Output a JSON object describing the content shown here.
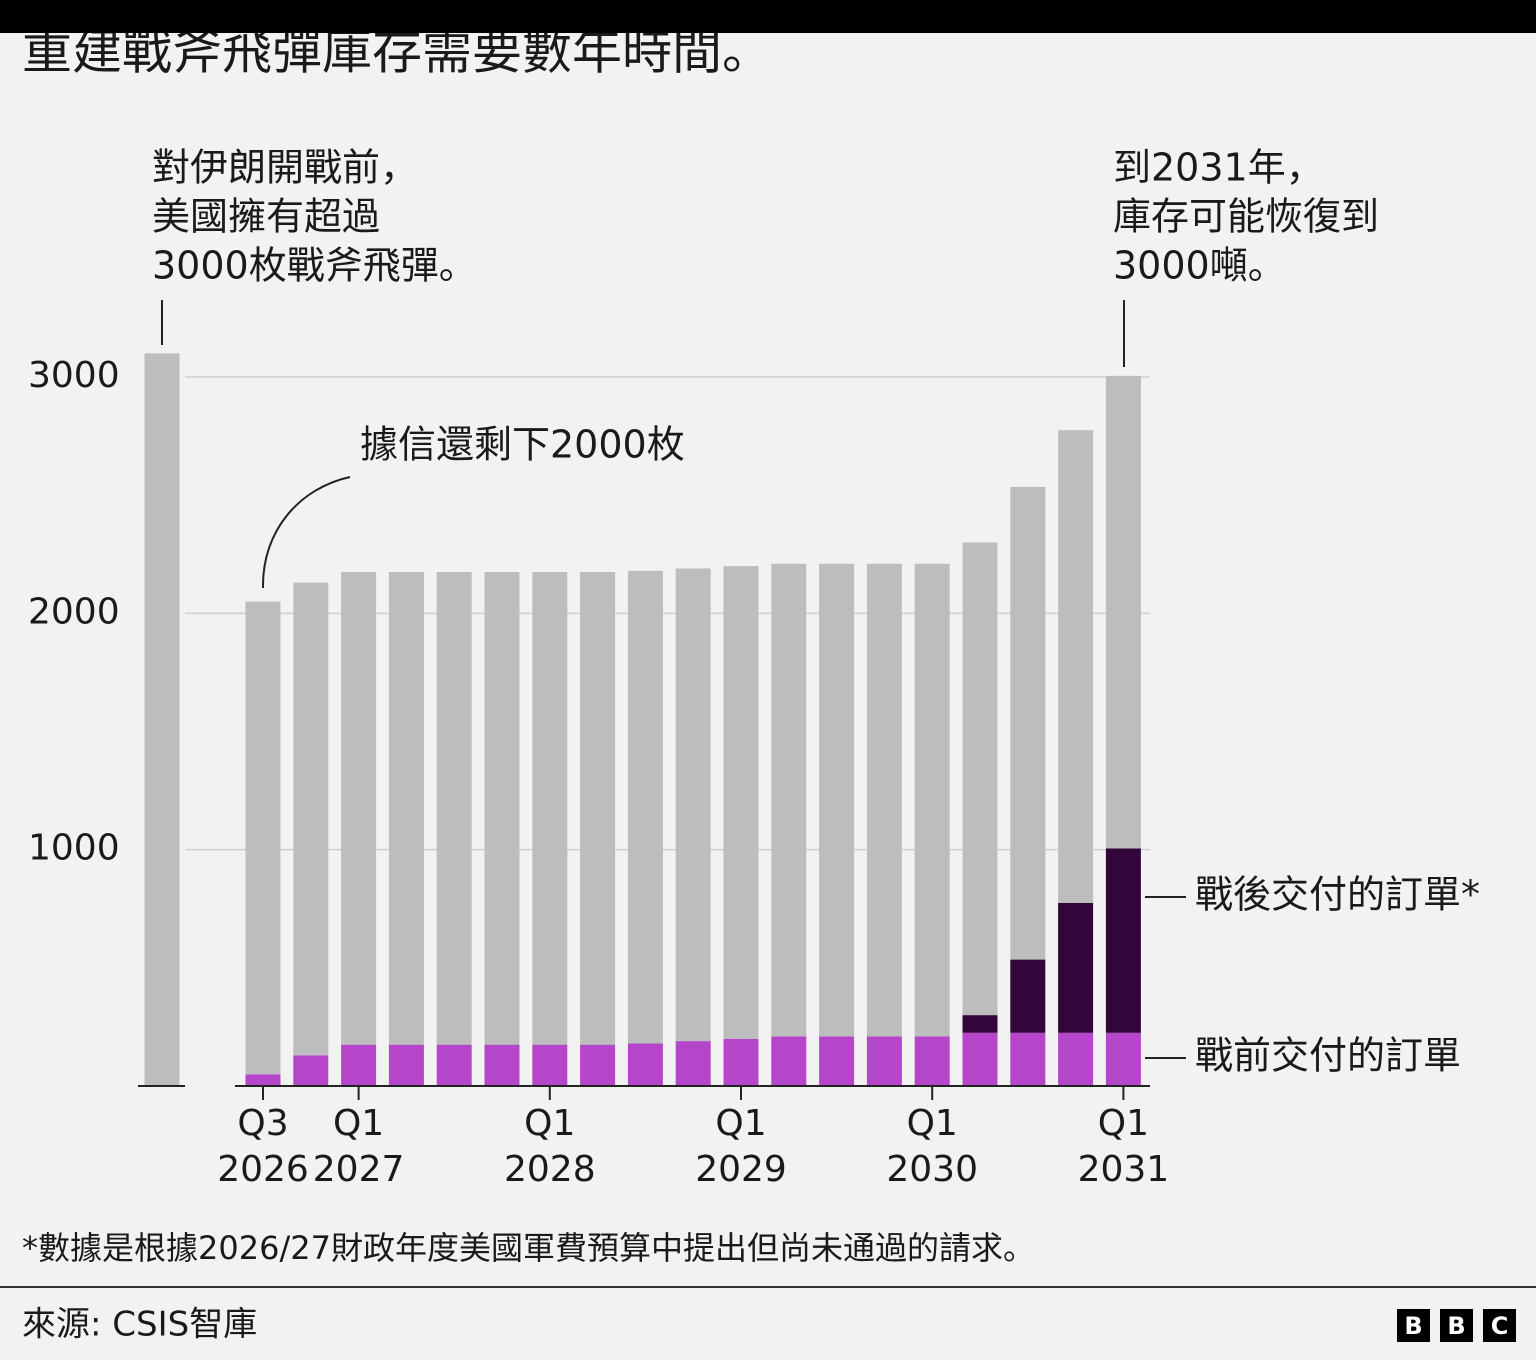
{
  "chart_data": {
    "type": "stacked_bar",
    "title": "重建戰斧飛彈庫存需要數年時間。",
    "categories": [
      null,
      [
        "Q3",
        "2026"
      ],
      null,
      [
        "Q1",
        "2027"
      ],
      null,
      null,
      null,
      [
        "Q1",
        "2028"
      ],
      null,
      null,
      null,
      [
        "Q1",
        "2029"
      ],
      null,
      null,
      null,
      [
        "Q1",
        "2030"
      ],
      null,
      null,
      null,
      [
        "Q1",
        "2031"
      ]
    ],
    "series": [
      {
        "color": "#bdbdbd",
        "values": [
          3100,
          2000,
          2000,
          2000,
          2000,
          2000,
          2000,
          2000,
          2000,
          2000,
          2000,
          2000,
          2000,
          2000,
          2000,
          2000,
          2000,
          2000,
          2000,
          2000
        ]
      },
      {
        "name": "戰前交付的訂單",
        "color": "#b546c9",
        "values": [
          null,
          50,
          130,
          175,
          175,
          175,
          175,
          175,
          175,
          180,
          190,
          200,
          210,
          210,
          210,
          210,
          225,
          225,
          225,
          225
        ]
      },
      {
        "name": "戰後交付的訂單*",
        "color": "#33063b",
        "values": [
          null,
          0,
          0,
          0,
          0,
          0,
          0,
          0,
          0,
          0,
          0,
          0,
          0,
          0,
          0,
          0,
          75,
          310,
          550,
          780
        ]
      }
    ],
    "ylim": [
      0,
      3100
    ],
    "yticks": [
      1000,
      2000,
      3000
    ],
    "grid": true,
    "annotations": [
      {
        "lines": [
          "對伊朗開戰前，",
          "美國擁有超過",
          "3000枚戰斧飛彈。"
        ]
      },
      {
        "lines": [
          "據信還剩下2000枚"
        ]
      },
      {
        "lines": [
          "到2031年，",
          "庫存可能恢復到",
          "3000噸。"
        ]
      }
    ],
    "footnote": "*數據是根據2026/27財政年度美國軍費預算中提出但尚未通過的請求。",
    "source": "來源: CSIS智庫",
    "logo": [
      "B",
      "B",
      "C"
    ]
  }
}
